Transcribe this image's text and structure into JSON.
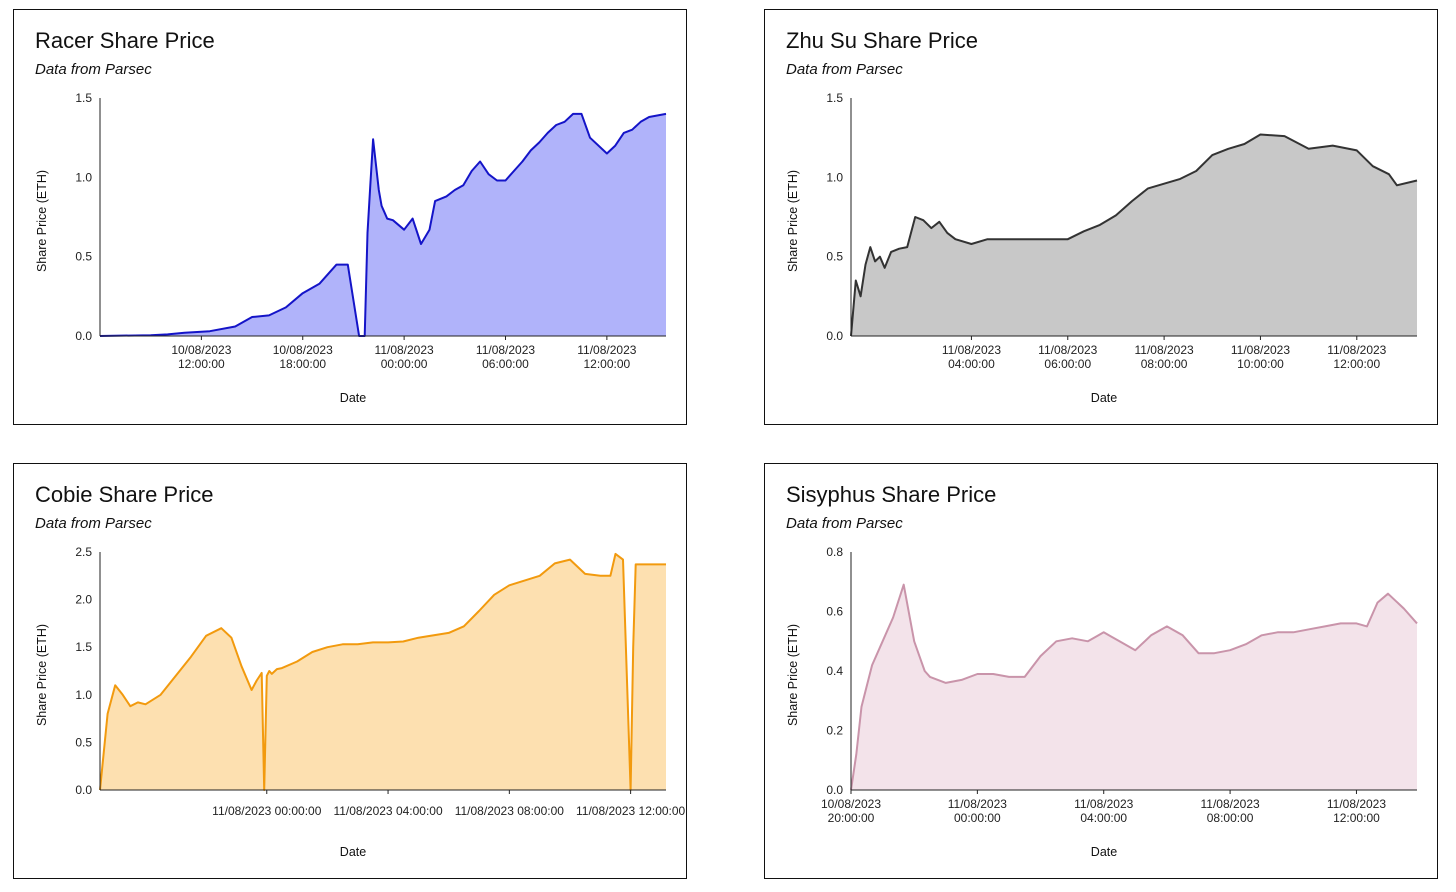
{
  "chart_data": [
    {
      "type": "area",
      "title": "Racer Share Price",
      "subtitle": "Data from Parsec",
      "xlabel": "Date",
      "ylabel": "Share Price (ETH)",
      "y_ticks": [
        "0.0",
        "0.5",
        "1.0",
        "1.5"
      ],
      "ylim": [
        0,
        1.5
      ],
      "xlim": [
        "2023-08-10 06:00",
        "2023-08-11 15:30"
      ],
      "x_ticks": [
        {
          "date": "10/08/2023",
          "time": "12:00:00",
          "at": "2023-08-10 12:00"
        },
        {
          "date": "10/08/2023",
          "time": "18:00:00",
          "at": "2023-08-10 18:00"
        },
        {
          "date": "11/08/2023",
          "time": "00:00:00",
          "at": "2023-08-11 00:00"
        },
        {
          "date": "11/08/2023",
          "time": "06:00:00",
          "at": "2023-08-11 06:00"
        },
        {
          "date": "11/08/2023",
          "time": "12:00:00",
          "at": "2023-08-11 12:00"
        }
      ],
      "colors": {
        "line": "#1414c8",
        "fill": "#b0b3fa"
      },
      "x": [
        "2023-08-10 06:00",
        "2023-08-10 09:00",
        "2023-08-10 10:00",
        "2023-08-10 11:00",
        "2023-08-10 12:30",
        "2023-08-10 14:00",
        "2023-08-10 15:00",
        "2023-08-10 16:00",
        "2023-08-10 17:00",
        "2023-08-10 18:00",
        "2023-08-10 19:00",
        "2023-08-10 20:00",
        "2023-08-10 20:40",
        "2023-08-10 21:20",
        "2023-08-10 21:40",
        "2023-08-10 21:50",
        "2023-08-10 22:00",
        "2023-08-10 22:10",
        "2023-08-10 22:30",
        "2023-08-10 22:40",
        "2023-08-10 22:50",
        "2023-08-10 23:00",
        "2023-08-10 23:20",
        "2023-08-11 00:00",
        "2023-08-11 00:30",
        "2023-08-11 01:00",
        "2023-08-11 01:30",
        "2023-08-11 01:50",
        "2023-08-11 02:30",
        "2023-08-11 03:00",
        "2023-08-11 03:30",
        "2023-08-11 04:00",
        "2023-08-11 04:30",
        "2023-08-11 05:00",
        "2023-08-11 05:30",
        "2023-08-11 06:00",
        "2023-08-11 06:30",
        "2023-08-11 07:00",
        "2023-08-11 07:30",
        "2023-08-11 08:00",
        "2023-08-11 08:30",
        "2023-08-11 09:00",
        "2023-08-11 09:30",
        "2023-08-11 10:00",
        "2023-08-11 10:30",
        "2023-08-11 11:00",
        "2023-08-11 12:00",
        "2023-08-11 12:30",
        "2023-08-11 13:00",
        "2023-08-11 13:30",
        "2023-08-11 14:00",
        "2023-08-11 14:30",
        "2023-08-11 15:30"
      ],
      "y": [
        0.0,
        0.005,
        0.01,
        0.02,
        0.03,
        0.06,
        0.12,
        0.13,
        0.18,
        0.27,
        0.33,
        0.45,
        0.45,
        0.0,
        0.0,
        0.65,
        0.95,
        1.24,
        0.92,
        0.82,
        0.78,
        0.74,
        0.73,
        0.67,
        0.74,
        0.58,
        0.67,
        0.85,
        0.88,
        0.92,
        0.95,
        1.04,
        1.1,
        1.02,
        0.98,
        0.98,
        1.04,
        1.1,
        1.17,
        1.22,
        1.28,
        1.33,
        1.35,
        1.4,
        1.4,
        1.25,
        1.15,
        1.2,
        1.28,
        1.3,
        1.35,
        1.38,
        1.4
      ]
    },
    {
      "type": "area",
      "title": "Zhu Su Share Price",
      "subtitle": "Data from Parsec",
      "xlabel": "Date",
      "ylabel": "Share Price (ETH)",
      "y_ticks": [
        "0.0",
        "0.5",
        "1.0",
        "1.5"
      ],
      "ylim": [
        0,
        1.5
      ],
      "xlim": [
        "2023-08-11 01:30",
        "2023-08-11 13:15"
      ],
      "x_ticks": [
        {
          "date": "11/08/2023",
          "time": "04:00:00",
          "at": "2023-08-11 04:00"
        },
        {
          "date": "11/08/2023",
          "time": "06:00:00",
          "at": "2023-08-11 06:00"
        },
        {
          "date": "11/08/2023",
          "time": "08:00:00",
          "at": "2023-08-11 08:00"
        },
        {
          "date": "11/08/2023",
          "time": "10:00:00",
          "at": "2023-08-11 10:00"
        },
        {
          "date": "11/08/2023",
          "time": "12:00:00",
          "at": "2023-08-11 12:00"
        }
      ],
      "colors": {
        "line": "#333333",
        "fill": "#c8c8c8"
      },
      "x": [
        "2023-08-11 01:30",
        "2023-08-11 01:36",
        "2023-08-11 01:42",
        "2023-08-11 01:48",
        "2023-08-11 01:54",
        "2023-08-11 02:00",
        "2023-08-11 02:06",
        "2023-08-11 02:12",
        "2023-08-11 02:20",
        "2023-08-11 02:30",
        "2023-08-11 02:40",
        "2023-08-11 02:50",
        "2023-08-11 03:00",
        "2023-08-11 03:10",
        "2023-08-11 03:20",
        "2023-08-11 03:30",
        "2023-08-11 03:40",
        "2023-08-11 04:00",
        "2023-08-11 04:20",
        "2023-08-11 04:40",
        "2023-08-11 05:00",
        "2023-08-11 05:30",
        "2023-08-11 06:00",
        "2023-08-11 06:20",
        "2023-08-11 06:40",
        "2023-08-11 07:00",
        "2023-08-11 07:20",
        "2023-08-11 07:40",
        "2023-08-11 08:00",
        "2023-08-11 08:20",
        "2023-08-11 08:40",
        "2023-08-11 09:00",
        "2023-08-11 09:20",
        "2023-08-11 09:40",
        "2023-08-11 10:00",
        "2023-08-11 10:30",
        "2023-08-11 11:00",
        "2023-08-11 11:30",
        "2023-08-11 12:00",
        "2023-08-11 12:20",
        "2023-08-11 12:40",
        "2023-08-11 12:50",
        "2023-08-11 13:15"
      ],
      "y": [
        0.0,
        0.35,
        0.25,
        0.45,
        0.56,
        0.47,
        0.5,
        0.43,
        0.53,
        0.55,
        0.56,
        0.75,
        0.73,
        0.68,
        0.72,
        0.65,
        0.61,
        0.58,
        0.61,
        0.61,
        0.61,
        0.61,
        0.61,
        0.66,
        0.7,
        0.76,
        0.85,
        0.93,
        0.96,
        0.99,
        1.04,
        1.14,
        1.18,
        1.21,
        1.27,
        1.26,
        1.18,
        1.2,
        1.17,
        1.07,
        1.02,
        0.95,
        0.98
      ]
    },
    {
      "type": "area",
      "title": "Cobie Share Price",
      "subtitle": "Data from Parsec",
      "xlabel": "Date",
      "ylabel": "Share Price (ETH)",
      "y_ticks": [
        "0.0",
        "0.5",
        "1.0",
        "1.5",
        "2.0",
        "2.5"
      ],
      "ylim": [
        0,
        2.5
      ],
      "xlim": [
        "2023-08-10 18:30",
        "2023-08-11 13:10"
      ],
      "x_ticks": [
        {
          "date": "11/08/2023",
          "time": "00:00:00",
          "at": "2023-08-11 00:00"
        },
        {
          "date": "11/08/2023",
          "time": "04:00:00",
          "at": "2023-08-11 04:00"
        },
        {
          "date": "11/08/2023",
          "time": "08:00:00",
          "at": "2023-08-11 08:00"
        },
        {
          "date": "11/08/2023",
          "time": "12:00:00",
          "at": "2023-08-11 12:00"
        }
      ],
      "colors": {
        "line": "#f29a0e",
        "fill": "#fde0b0"
      },
      "x": [
        "2023-08-10 18:30",
        "2023-08-10 18:45",
        "2023-08-10 19:00",
        "2023-08-10 19:15",
        "2023-08-10 19:30",
        "2023-08-10 19:45",
        "2023-08-10 20:00",
        "2023-08-10 20:30",
        "2023-08-10 21:00",
        "2023-08-10 21:30",
        "2023-08-10 22:00",
        "2023-08-10 22:30",
        "2023-08-10 22:50",
        "2023-08-10 23:10",
        "2023-08-10 23:30",
        "2023-08-10 23:40",
        "2023-08-10 23:50",
        "2023-08-10 23:55",
        "2023-08-11 00:00",
        "2023-08-11 00:05",
        "2023-08-11 00:10",
        "2023-08-11 00:20",
        "2023-08-11 00:30",
        "2023-08-11 01:00",
        "2023-08-11 01:30",
        "2023-08-11 02:00",
        "2023-08-11 02:30",
        "2023-08-11 03:00",
        "2023-08-11 03:30",
        "2023-08-11 04:00",
        "2023-08-11 04:30",
        "2023-08-11 05:00",
        "2023-08-11 06:00",
        "2023-08-11 06:30",
        "2023-08-11 07:00",
        "2023-08-11 07:30",
        "2023-08-11 08:00",
        "2023-08-11 08:30",
        "2023-08-11 09:00",
        "2023-08-11 09:30",
        "2023-08-11 10:00",
        "2023-08-11 10:30",
        "2023-08-11 11:00",
        "2023-08-11 11:20",
        "2023-08-11 11:30",
        "2023-08-11 11:45",
        "2023-08-11 12:00",
        "2023-08-11 12:05",
        "2023-08-11 12:10",
        "2023-08-11 13:10"
      ],
      "y": [
        0.0,
        0.8,
        1.1,
        1.0,
        0.88,
        0.92,
        0.9,
        1.0,
        1.2,
        1.4,
        1.62,
        1.7,
        1.6,
        1.3,
        1.05,
        1.15,
        1.23,
        0.0,
        1.2,
        1.25,
        1.22,
        1.27,
        1.28,
        1.35,
        1.45,
        1.5,
        1.53,
        1.53,
        1.55,
        1.55,
        1.56,
        1.6,
        1.65,
        1.72,
        1.88,
        2.05,
        2.15,
        2.2,
        2.25,
        2.38,
        2.42,
        2.27,
        2.25,
        2.25,
        2.48,
        2.42,
        0.0,
        1.5,
        2.37,
        2.37
      ]
    },
    {
      "type": "area",
      "title": "Sisyphus Share Price",
      "subtitle": "Data from Parsec",
      "xlabel": "Date",
      "ylabel": "Share Price (ETH)",
      "y_ticks": [
        "0.0",
        "0.2",
        "0.4",
        "0.6",
        "0.8"
      ],
      "ylim": [
        0,
        0.8
      ],
      "xlim": [
        "2023-08-10 20:00",
        "2023-08-11 13:55"
      ],
      "x_ticks": [
        {
          "date": "10/08/2023",
          "time": "20:00:00",
          "at": "2023-08-10 20:00"
        },
        {
          "date": "11/08/2023",
          "time": "00:00:00",
          "at": "2023-08-11 00:00"
        },
        {
          "date": "11/08/2023",
          "time": "04:00:00",
          "at": "2023-08-11 04:00"
        },
        {
          "date": "11/08/2023",
          "time": "08:00:00",
          "at": "2023-08-11 08:00"
        },
        {
          "date": "11/08/2023",
          "time": "12:00:00",
          "at": "2023-08-11 12:00"
        }
      ],
      "colors": {
        "line": "#c994aa",
        "fill": "#f3e3ea"
      },
      "x": [
        "2023-08-10 20:00",
        "2023-08-10 20:10",
        "2023-08-10 20:20",
        "2023-08-10 20:30",
        "2023-08-10 20:40",
        "2023-08-10 21:00",
        "2023-08-10 21:20",
        "2023-08-10 21:40",
        "2023-08-10 22:00",
        "2023-08-10 22:10",
        "2023-08-10 22:20",
        "2023-08-10 22:30",
        "2023-08-10 23:00",
        "2023-08-10 23:30",
        "2023-08-11 00:00",
        "2023-08-11 00:30",
        "2023-08-11 01:00",
        "2023-08-11 01:30",
        "2023-08-11 02:00",
        "2023-08-11 02:30",
        "2023-08-11 03:00",
        "2023-08-11 03:30",
        "2023-08-11 04:00",
        "2023-08-11 04:30",
        "2023-08-11 05:00",
        "2023-08-11 05:30",
        "2023-08-11 06:00",
        "2023-08-11 06:30",
        "2023-08-11 07:00",
        "2023-08-11 07:30",
        "2023-08-11 08:00",
        "2023-08-11 08:30",
        "2023-08-11 09:00",
        "2023-08-11 09:30",
        "2023-08-11 10:00",
        "2023-08-11 10:30",
        "2023-08-11 11:00",
        "2023-08-11 11:30",
        "2023-08-11 12:00",
        "2023-08-11 12:20",
        "2023-08-11 12:40",
        "2023-08-11 13:00",
        "2023-08-11 13:30",
        "2023-08-11 13:55"
      ],
      "y": [
        0.0,
        0.12,
        0.28,
        0.35,
        0.42,
        0.5,
        0.58,
        0.69,
        0.5,
        0.45,
        0.4,
        0.38,
        0.36,
        0.37,
        0.39,
        0.39,
        0.38,
        0.38,
        0.45,
        0.5,
        0.51,
        0.5,
        0.53,
        0.5,
        0.47,
        0.52,
        0.55,
        0.52,
        0.46,
        0.46,
        0.47,
        0.49,
        0.52,
        0.53,
        0.53,
        0.54,
        0.55,
        0.56,
        0.56,
        0.55,
        0.63,
        0.66,
        0.61,
        0.56
      ]
    }
  ]
}
